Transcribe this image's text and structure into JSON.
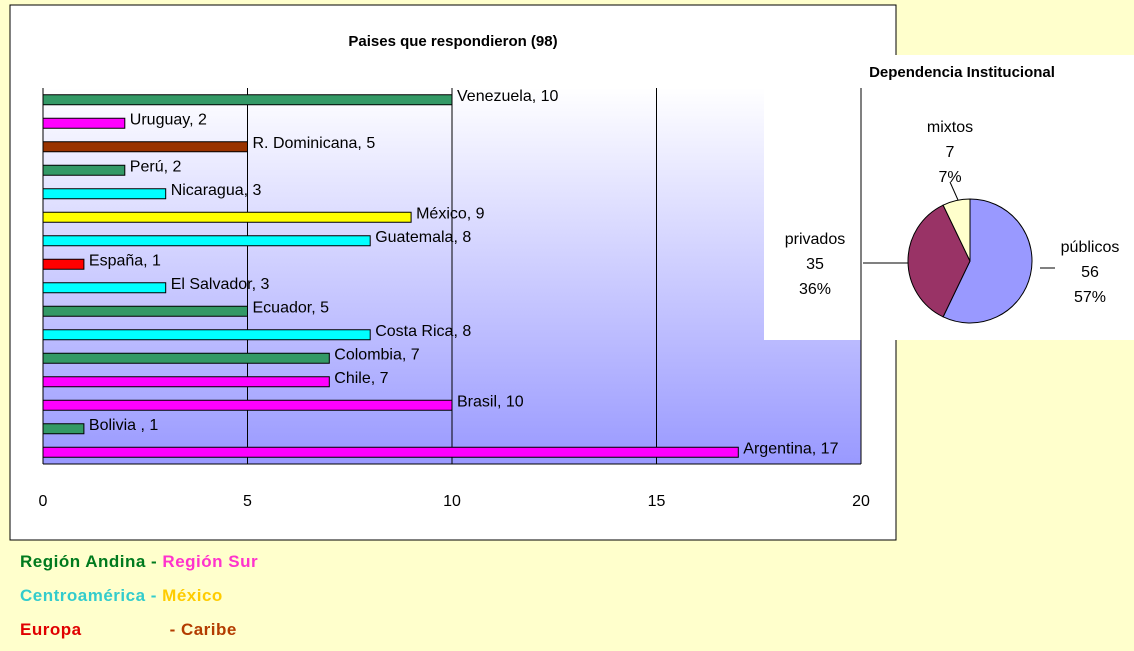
{
  "chart_data": [
    {
      "type": "bar",
      "orientation": "horizontal",
      "title": "Paises que respondieron (98)",
      "values": [
        10,
        2,
        5,
        2,
        3,
        9,
        8,
        1,
        3,
        5,
        8,
        7,
        7,
        10,
        1,
        17
      ],
      "value_labels": [
        "Venezuela, 10",
        "Uruguay, 2",
        "R. Dominicana, 5",
        "Perú, 2",
        "Nicaragua, 3",
        "México, 9",
        "Guatemala, 8",
        "España, 1",
        "El Salvador, 3",
        "Ecuador, 5",
        "Costa Rica, 8",
        "Colombia, 7",
        "Chile, 7",
        "Brasil, 10",
        "Bolivia , 1",
        "Argentina, 17"
      ],
      "colors": [
        "#339966",
        "#ff00ff",
        "#993300",
        "#339966",
        "#00ffff",
        "#ffff00",
        "#00ffff",
        "#ff0000",
        "#00ffff",
        "#339966",
        "#00ffff",
        "#339966",
        "#ff00ff",
        "#ff00ff",
        "#339966",
        "#ff00ff"
      ],
      "xlim": [
        0,
        20
      ],
      "xticks": [
        0,
        5,
        10,
        15,
        20
      ],
      "grid": true
    },
    {
      "type": "pie",
      "title": "Dependencia Institucional",
      "categories": [
        "públicos",
        "privados",
        "mixtos"
      ],
      "values": [
        56,
        35,
        7
      ],
      "percent_labels": [
        "57%",
        "36%",
        "7%"
      ],
      "colors": [
        "#9999ff",
        "#993366",
        "#ffffcc"
      ]
    }
  ],
  "legend": [
    [
      {
        "text": "Región Andina - ",
        "color": "#007a1e"
      },
      {
        "text": "Región Sur",
        "color": "#ff33cc"
      }
    ],
    [
      {
        "text": "Centroamérica - ",
        "color": "#33cccc"
      },
      {
        "text": "México",
        "color": "#ffcc00"
      }
    ],
    [
      {
        "text": "Europa",
        "color": "#e00000"
      },
      {
        "text": "- Caribe",
        "color": "#b33c00"
      }
    ]
  ]
}
